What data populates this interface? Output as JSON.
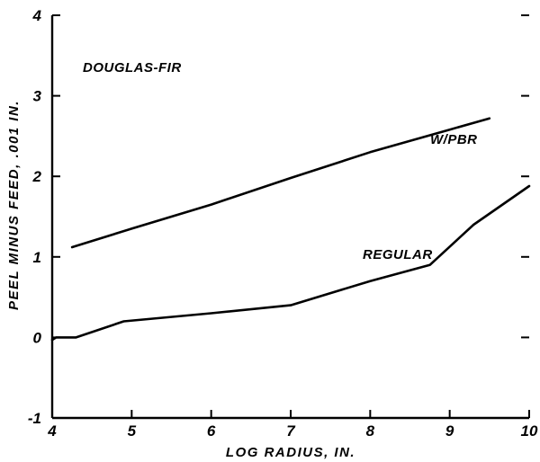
{
  "chart_data": {
    "type": "line",
    "title": "",
    "annotation": "DOUGLAS-FIR",
    "xlabel": "LOG RADIUS, IN.",
    "ylabel": "PEEL MINUS FEED, .001 IN.",
    "xlim": [
      4,
      10
    ],
    "ylim": [
      -1,
      4
    ],
    "xticks": [
      "4",
      "5",
      "6",
      "7",
      "8",
      "9",
      "10"
    ],
    "yticks": [
      "-1",
      "0",
      "1",
      "2",
      "3",
      "4"
    ],
    "grid": false,
    "legend": "none",
    "series": [
      {
        "name": "W/PBR",
        "x": [
          4.25,
          5,
          6,
          7,
          8,
          9,
          9.5
        ],
        "y": [
          1.12,
          1.35,
          1.65,
          1.98,
          2.3,
          2.58,
          2.72
        ]
      },
      {
        "name": "REGULAR",
        "x": [
          4,
          4.05,
          4.3,
          4.9,
          6,
          7,
          8,
          8.75,
          9.3,
          10
        ],
        "y": [
          -0.03,
          0.0,
          0.0,
          0.2,
          0.3,
          0.4,
          0.7,
          0.9,
          1.4,
          1.88
        ]
      }
    ]
  }
}
